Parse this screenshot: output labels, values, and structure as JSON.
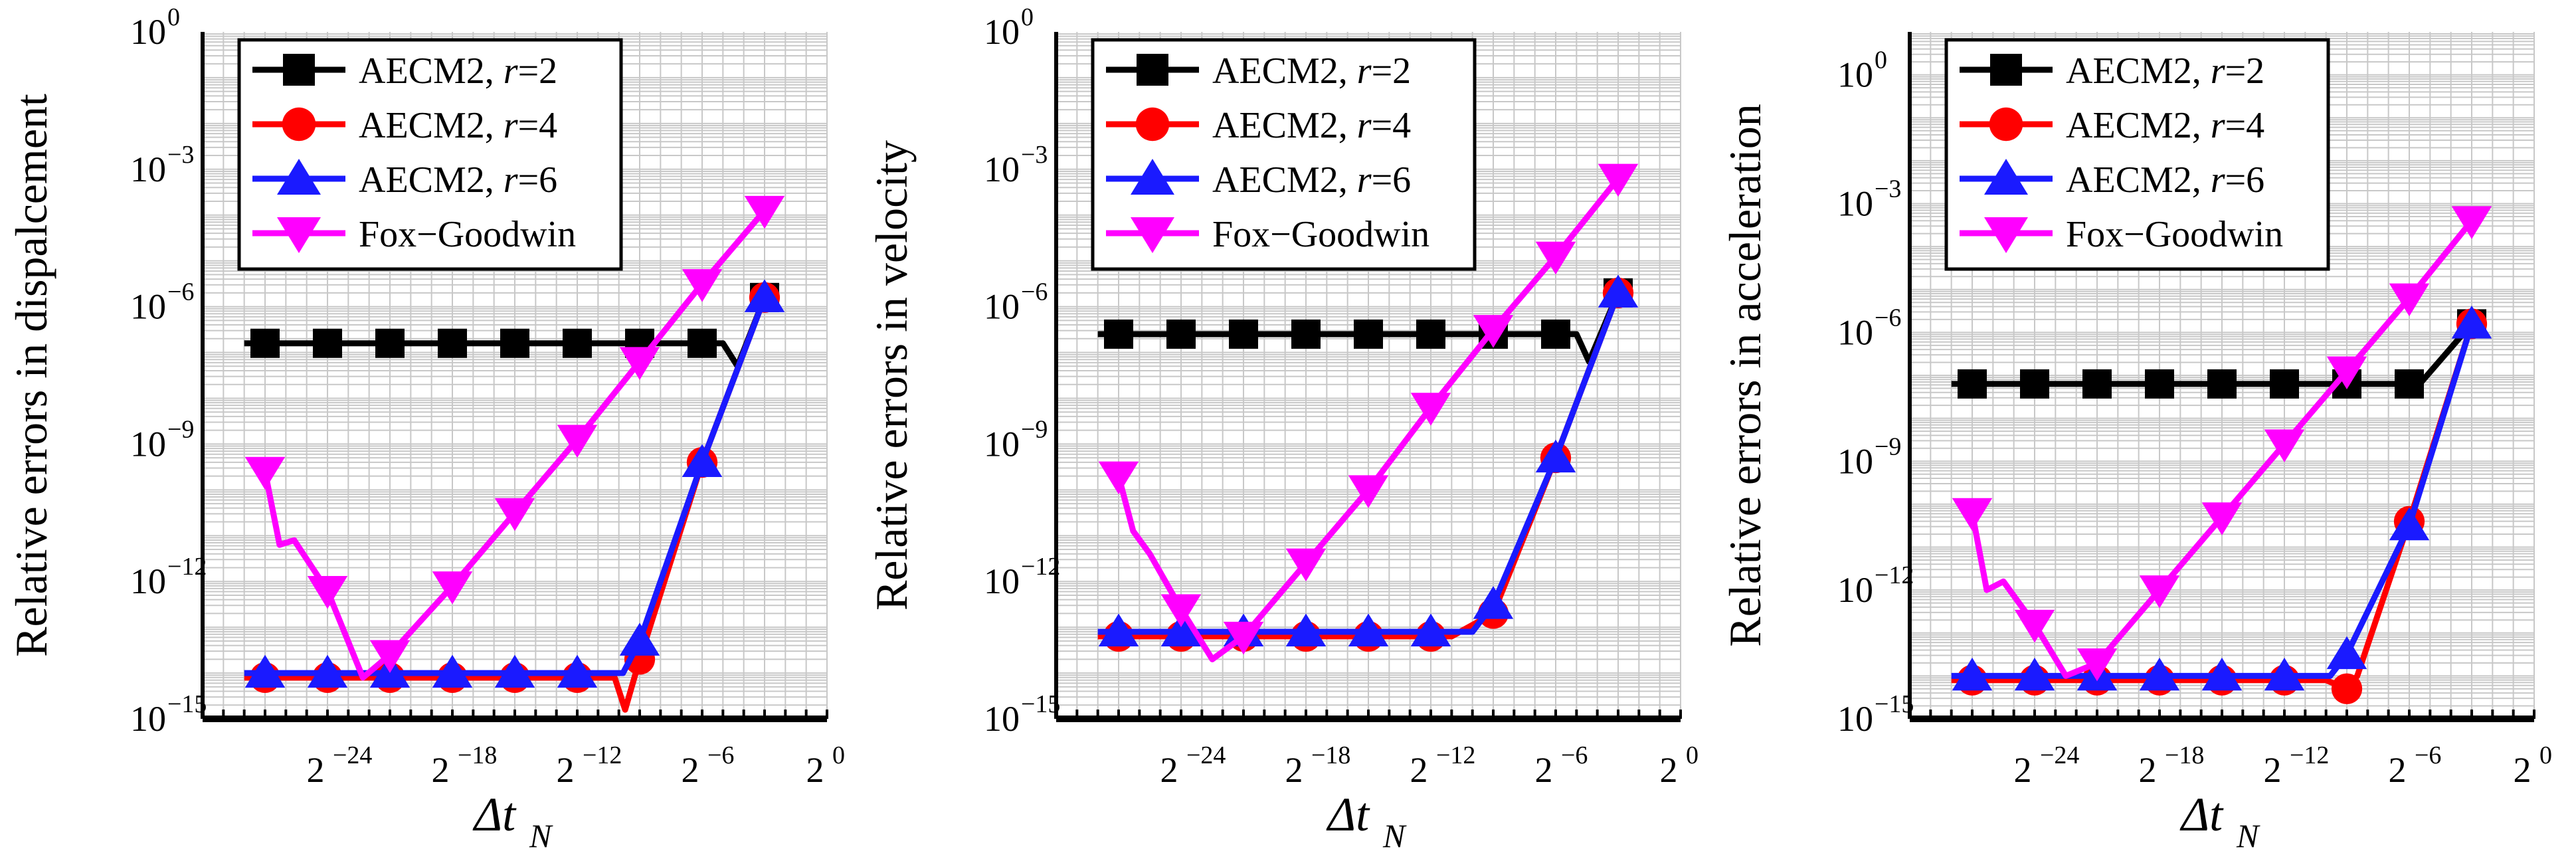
{
  "figure": {
    "colors": {
      "r2": "#000000",
      "r4": "#ff0000",
      "r6": "#1a1aff",
      "fox": "#ff00ff",
      "grid": "#c8c8c8"
    },
    "legend_entries": [
      {
        "key": "r2",
        "prefix": "AECM2, ",
        "var": "r",
        "suffix": "=2",
        "marker": "square"
      },
      {
        "key": "r4",
        "prefix": "AECM2, ",
        "var": "r",
        "suffix": "=4",
        "marker": "circle"
      },
      {
        "key": "r6",
        "prefix": "AECM2, ",
        "var": "r",
        "suffix": "=6",
        "marker": "triangle-up"
      },
      {
        "key": "fox",
        "prefix": "Fox−Goodwin",
        "var": "",
        "suffix": "",
        "marker": "triangle-down"
      }
    ]
  },
  "chart_data": [
    {
      "type": "line",
      "title": "",
      "ylabel": "Relative errors in dispalcement",
      "xlabel_symbol": "Δt",
      "xlabel_sub": "N",
      "x_scale": "log2",
      "y_scale": "log10",
      "xlim_exp": [
        -30,
        0
      ],
      "ylim_exp": [
        -15,
        0
      ],
      "x_ticks": [
        {
          "base": "2",
          "exp": "−24",
          "value": -24
        },
        {
          "base": "2",
          "exp": "−18",
          "value": -18
        },
        {
          "base": "2",
          "exp": "−12",
          "value": -12
        },
        {
          "base": "2",
          "exp": "−6",
          "value": -6
        },
        {
          "base": "2",
          "exp": "0",
          "value": 0
        }
      ],
      "y_ticks": [
        {
          "base": "10",
          "exp": "−15",
          "value": -15
        },
        {
          "base": "10",
          "exp": "−12",
          "value": -12
        },
        {
          "base": "10",
          "exp": "−9",
          "value": -9
        },
        {
          "base": "10",
          "exp": "−6",
          "value": -6
        },
        {
          "base": "10",
          "exp": "−3",
          "value": -3
        },
        {
          "base": "10",
          "exp": "0",
          "value": 0
        }
      ],
      "series": [
        {
          "key": "r2",
          "name": "AECM2, r=2",
          "line": [
            [
              -28,
              -6.8
            ],
            [
              -5,
              -6.8
            ],
            [
              -4.3,
              -7.3
            ],
            [
              -3,
              -5.8
            ]
          ],
          "markers": [
            [
              -27,
              -6.8
            ],
            [
              -24,
              -6.8
            ],
            [
              -21,
              -6.8
            ],
            [
              -18,
              -6.8
            ],
            [
              -15,
              -6.8
            ],
            [
              -12,
              -6.8
            ],
            [
              -9,
              -6.8
            ],
            [
              -6,
              -6.8
            ],
            [
              -3,
              -5.8
            ]
          ]
        },
        {
          "key": "r4",
          "name": "AECM2, r=4",
          "line": [
            [
              -28,
              -14.1
            ],
            [
              -10.2,
              -14.1
            ],
            [
              -9.7,
              -14.8
            ],
            [
              -9,
              -13.7
            ],
            [
              -6,
              -9.4
            ],
            [
              -3,
              -5.8
            ]
          ],
          "markers": [
            [
              -27,
              -14.1
            ],
            [
              -24,
              -14.1
            ],
            [
              -21,
              -14.1
            ],
            [
              -18,
              -14.1
            ],
            [
              -15,
              -14.1
            ],
            [
              -12,
              -14.1
            ],
            [
              -9,
              -13.7
            ],
            [
              -6,
              -9.4
            ],
            [
              -3,
              -5.8
            ]
          ]
        },
        {
          "key": "r6",
          "name": "AECM2, r=6",
          "line": [
            [
              -28,
              -14.0
            ],
            [
              -9.8,
              -14.0
            ],
            [
              -9,
              -13.3
            ],
            [
              -6,
              -9.4
            ],
            [
              -3,
              -5.8
            ]
          ],
          "markers": [
            [
              -27,
              -14.0
            ],
            [
              -24,
              -14.0
            ],
            [
              -21,
              -14.0
            ],
            [
              -18,
              -14.0
            ],
            [
              -15,
              -14.0
            ],
            [
              -12,
              -14.0
            ],
            [
              -9,
              -13.3
            ],
            [
              -6,
              -9.4
            ],
            [
              -3,
              -5.8
            ]
          ]
        },
        {
          "key": "fox",
          "name": "Fox−Goodwin",
          "line": [
            [
              -27,
              -9.6
            ],
            [
              -26.3,
              -11.2
            ],
            [
              -25.6,
              -11.1
            ],
            [
              -24,
              -12.2
            ],
            [
              -22.3,
              -14.1
            ],
            [
              -21,
              -13.6
            ],
            [
              -18,
              -12.1
            ],
            [
              -15,
              -10.5
            ],
            [
              -12,
              -8.9
            ],
            [
              -9,
              -7.2
            ],
            [
              -6,
              -5.5
            ],
            [
              -3,
              -3.9
            ]
          ],
          "markers": [
            [
              -27,
              -9.6
            ],
            [
              -24,
              -12.2
            ],
            [
              -21,
              -13.6
            ],
            [
              -18,
              -12.1
            ],
            [
              -15,
              -10.5
            ],
            [
              -12,
              -8.9
            ],
            [
              -9,
              -7.2
            ],
            [
              -6,
              -5.5
            ],
            [
              -3,
              -3.9
            ]
          ]
        }
      ]
    },
    {
      "type": "line",
      "title": "",
      "ylabel": "Relative errors in velocity",
      "xlabel_symbol": "Δt",
      "xlabel_sub": "N",
      "x_scale": "log2",
      "y_scale": "log10",
      "xlim_exp": [
        -30,
        0
      ],
      "ylim_exp": [
        -15,
        0
      ],
      "x_ticks": [
        {
          "base": "2",
          "exp": "−24",
          "value": -24
        },
        {
          "base": "2",
          "exp": "−18",
          "value": -18
        },
        {
          "base": "2",
          "exp": "−12",
          "value": -12
        },
        {
          "base": "2",
          "exp": "−6",
          "value": -6
        },
        {
          "base": "2",
          "exp": "0",
          "value": 0
        }
      ],
      "y_ticks": [
        {
          "base": "10",
          "exp": "−15",
          "value": -15
        },
        {
          "base": "10",
          "exp": "−12",
          "value": -12
        },
        {
          "base": "10",
          "exp": "−9",
          "value": -9
        },
        {
          "base": "10",
          "exp": "−6",
          "value": -6
        },
        {
          "base": "10",
          "exp": "−3",
          "value": -3
        },
        {
          "base": "10",
          "exp": "0",
          "value": 0
        }
      ],
      "series": [
        {
          "key": "r2",
          "name": "AECM2, r=2",
          "line": [
            [
              -28,
              -6.6
            ],
            [
              -5,
              -6.6
            ],
            [
              -4.4,
              -7.2
            ],
            [
              -3,
              -5.7
            ]
          ],
          "markers": [
            [
              -27,
              -6.6
            ],
            [
              -24,
              -6.6
            ],
            [
              -21,
              -6.6
            ],
            [
              -18,
              -6.6
            ],
            [
              -15,
              -6.6
            ],
            [
              -12,
              -6.6
            ],
            [
              -9,
              -6.6
            ],
            [
              -6,
              -6.6
            ],
            [
              -3,
              -5.7
            ]
          ]
        },
        {
          "key": "r4",
          "name": "AECM2, r=4",
          "line": [
            [
              -28,
              -13.2
            ],
            [
              -11,
              -13.2
            ],
            [
              -9,
              -12.7
            ],
            [
              -6,
              -9.3
            ],
            [
              -3,
              -5.7
            ]
          ],
          "markers": [
            [
              -27,
              -13.2
            ],
            [
              -24,
              -13.2
            ],
            [
              -21,
              -13.2
            ],
            [
              -18,
              -13.2
            ],
            [
              -15,
              -13.2
            ],
            [
              -12,
              -13.2
            ],
            [
              -9,
              -12.7
            ],
            [
              -6,
              -9.3
            ],
            [
              -3,
              -5.7
            ]
          ]
        },
        {
          "key": "r6",
          "name": "AECM2, r=6",
          "line": [
            [
              -28,
              -13.1
            ],
            [
              -10,
              -13.1
            ],
            [
              -9,
              -12.5
            ],
            [
              -6,
              -9.3
            ],
            [
              -3,
              -5.7
            ]
          ],
          "markers": [
            [
              -27,
              -13.1
            ],
            [
              -24,
              -13.1
            ],
            [
              -21,
              -13.1
            ],
            [
              -18,
              -13.1
            ],
            [
              -15,
              -13.1
            ],
            [
              -12,
              -13.1
            ],
            [
              -9,
              -12.5
            ],
            [
              -6,
              -9.3
            ],
            [
              -3,
              -5.7
            ]
          ]
        },
        {
          "key": "fox",
          "name": "Fox−Goodwin",
          "line": [
            [
              -27,
              -9.7
            ],
            [
              -26.3,
              -10.9
            ],
            [
              -25.5,
              -11.4
            ],
            [
              -24,
              -12.6
            ],
            [
              -22.5,
              -13.7
            ],
            [
              -21,
              -13.2
            ],
            [
              -18,
              -11.6
            ],
            [
              -15,
              -10.0
            ],
            [
              -12,
              -8.2
            ],
            [
              -9,
              -6.5
            ],
            [
              -6,
              -4.9
            ],
            [
              -3,
              -3.2
            ]
          ],
          "markers": [
            [
              -27,
              -9.7
            ],
            [
              -24,
              -12.6
            ],
            [
              -21,
              -13.2
            ],
            [
              -18,
              -11.6
            ],
            [
              -15,
              -10.0
            ],
            [
              -12,
              -8.2
            ],
            [
              -9,
              -6.5
            ],
            [
              -6,
              -4.9
            ],
            [
              -3,
              -3.2
            ]
          ]
        }
      ]
    },
    {
      "type": "line",
      "title": "",
      "ylabel": "Relative errors in acceleration",
      "xlabel_symbol": "Δt",
      "xlabel_sub": "N",
      "x_scale": "log2",
      "y_scale": "log10",
      "xlim_exp": [
        -30,
        0
      ],
      "ylim_exp": [
        -15,
        1
      ],
      "x_ticks": [
        {
          "base": "2",
          "exp": "−24",
          "value": -24
        },
        {
          "base": "2",
          "exp": "−18",
          "value": -18
        },
        {
          "base": "2",
          "exp": "−12",
          "value": -12
        },
        {
          "base": "2",
          "exp": "−6",
          "value": -6
        },
        {
          "base": "2",
          "exp": "0",
          "value": 0
        }
      ],
      "y_ticks": [
        {
          "base": "10",
          "exp": "−15",
          "value": -15
        },
        {
          "base": "10",
          "exp": "−12",
          "value": -12
        },
        {
          "base": "10",
          "exp": "−9",
          "value": -9
        },
        {
          "base": "10",
          "exp": "−6",
          "value": -6
        },
        {
          "base": "10",
          "exp": "−3",
          "value": -3
        },
        {
          "base": "10",
          "exp": "0",
          "value": 0
        }
      ],
      "series": [
        {
          "key": "r2",
          "name": "AECM2, r=2",
          "line": [
            [
              -28,
              -7.2
            ],
            [
              -5.5,
              -7.2
            ],
            [
              -3,
              -5.8
            ]
          ],
          "markers": [
            [
              -27,
              -7.2
            ],
            [
              -24,
              -7.2
            ],
            [
              -21,
              -7.2
            ],
            [
              -18,
              -7.2
            ],
            [
              -15,
              -7.2
            ],
            [
              -12,
              -7.2
            ],
            [
              -9,
              -7.2
            ],
            [
              -6,
              -7.2
            ],
            [
              -3,
              -5.8
            ]
          ]
        },
        {
          "key": "r4",
          "name": "AECM2, r=4",
          "line": [
            [
              -28,
              -14.1
            ],
            [
              -10,
              -14.1
            ],
            [
              -9,
              -14.3
            ],
            [
              -8.5,
              -14.0
            ],
            [
              -6,
              -10.4
            ],
            [
              -3,
              -5.8
            ]
          ],
          "markers": [
            [
              -27,
              -14.1
            ],
            [
              -24,
              -14.1
            ],
            [
              -21,
              -14.1
            ],
            [
              -18,
              -14.1
            ],
            [
              -15,
              -14.1
            ],
            [
              -12,
              -14.1
            ],
            [
              -9,
              -14.3
            ],
            [
              -6,
              -10.4
            ],
            [
              -3,
              -5.8
            ]
          ]
        },
        {
          "key": "r6",
          "name": "AECM2, r=6",
          "line": [
            [
              -28,
              -14.0
            ],
            [
              -9.8,
              -14.0
            ],
            [
              -9,
              -13.5
            ],
            [
              -6,
              -10.5
            ],
            [
              -3,
              -5.8
            ]
          ],
          "markers": [
            [
              -27,
              -14.0
            ],
            [
              -24,
              -14.0
            ],
            [
              -21,
              -14.0
            ],
            [
              -18,
              -14.0
            ],
            [
              -15,
              -14.0
            ],
            [
              -12,
              -14.0
            ],
            [
              -9,
              -13.5
            ],
            [
              -6,
              -10.5
            ],
            [
              -3,
              -5.8
            ]
          ]
        },
        {
          "key": "fox",
          "name": "Fox−Goodwin",
          "line": [
            [
              -27,
              -10.2
            ],
            [
              -26.3,
              -12.0
            ],
            [
              -25.5,
              -11.8
            ],
            [
              -24,
              -12.8
            ],
            [
              -22.5,
              -14.0
            ],
            [
              -21,
              -13.7
            ],
            [
              -18,
              -12.0
            ],
            [
              -15,
              -10.3
            ],
            [
              -12,
              -8.6
            ],
            [
              -9,
              -6.9
            ],
            [
              -6,
              -5.2
            ],
            [
              -3,
              -3.4
            ]
          ],
          "markers": [
            [
              -27,
              -10.2
            ],
            [
              -24,
              -12.8
            ],
            [
              -21,
              -13.7
            ],
            [
              -18,
              -12.0
            ],
            [
              -15,
              -10.3
            ],
            [
              -12,
              -8.6
            ],
            [
              -9,
              -6.9
            ],
            [
              -6,
              -5.2
            ],
            [
              -3,
              -3.4
            ]
          ]
        }
      ]
    }
  ]
}
